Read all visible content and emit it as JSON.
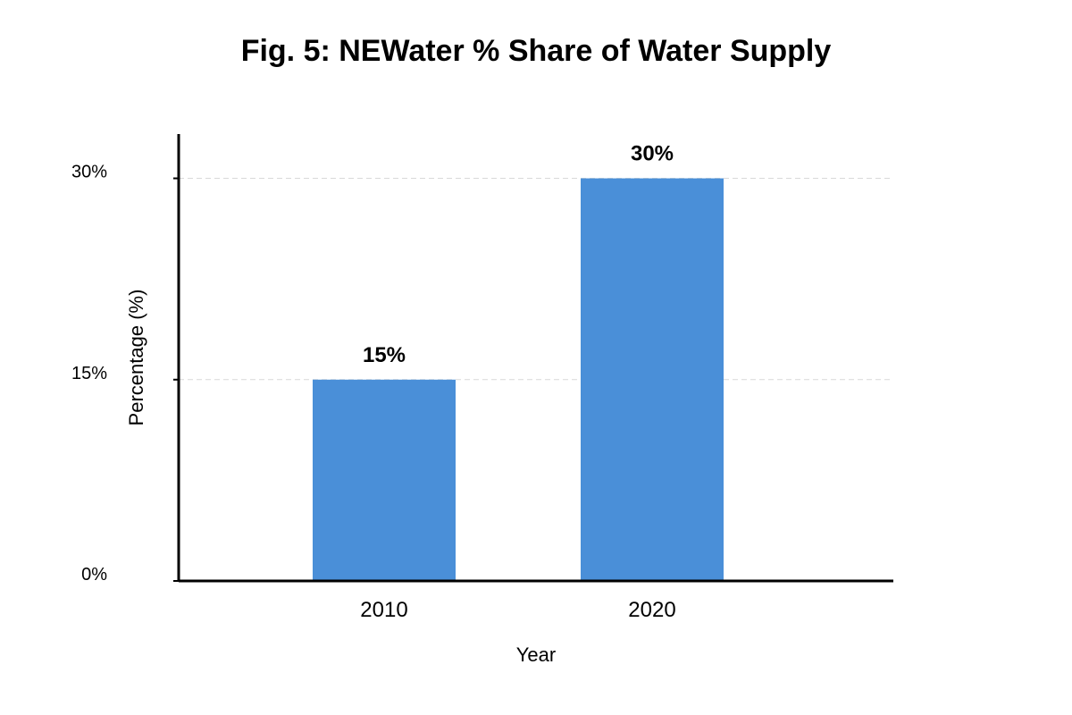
{
  "chart_data": {
    "type": "bar",
    "title": "Fig. 5: NEWater % Share of Water Supply",
    "xlabel": "Year",
    "ylabel": "Percentage (%)",
    "categories": [
      "2010",
      "2020"
    ],
    "values": [
      15,
      30
    ],
    "data_labels": [
      "15%",
      "30%"
    ],
    "yticks": [
      0,
      15,
      30
    ],
    "ytick_labels": [
      "0%",
      "15%",
      "30%"
    ],
    "ylim": [
      0,
      33.3
    ],
    "grid": true,
    "bar_color": "#4a8fd8",
    "grid_color": "#d9d9d9",
    "axis_color": "#000000"
  }
}
